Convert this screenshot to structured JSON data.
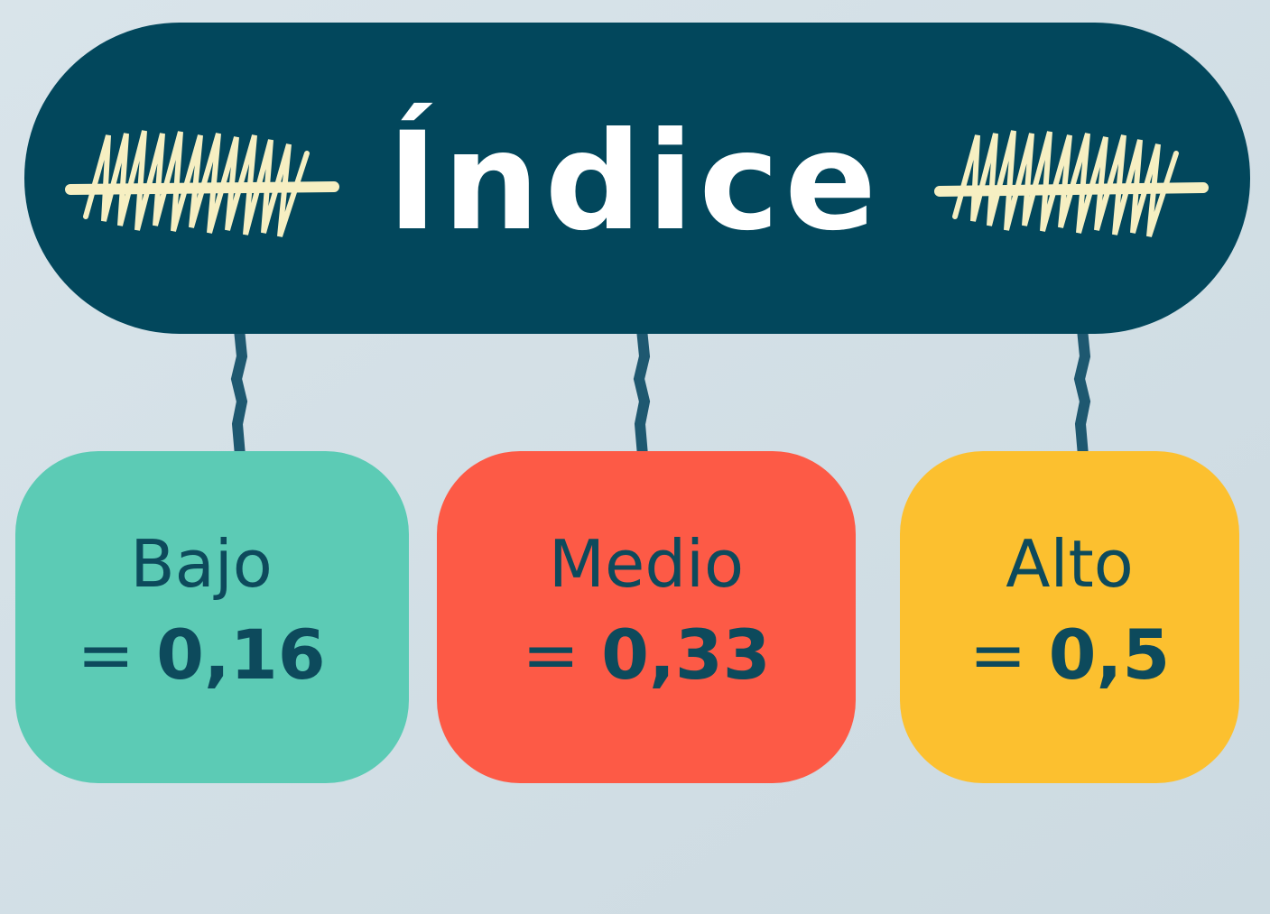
{
  "header": {
    "title": "Índice"
  },
  "nodes": [
    {
      "label": "Bajo",
      "sign": "=",
      "value": "0,16"
    },
    {
      "label": "Medio",
      "sign": "=",
      "value": "0,33"
    },
    {
      "label": "Alto",
      "sign": "=",
      "value": "0,5"
    }
  ]
}
